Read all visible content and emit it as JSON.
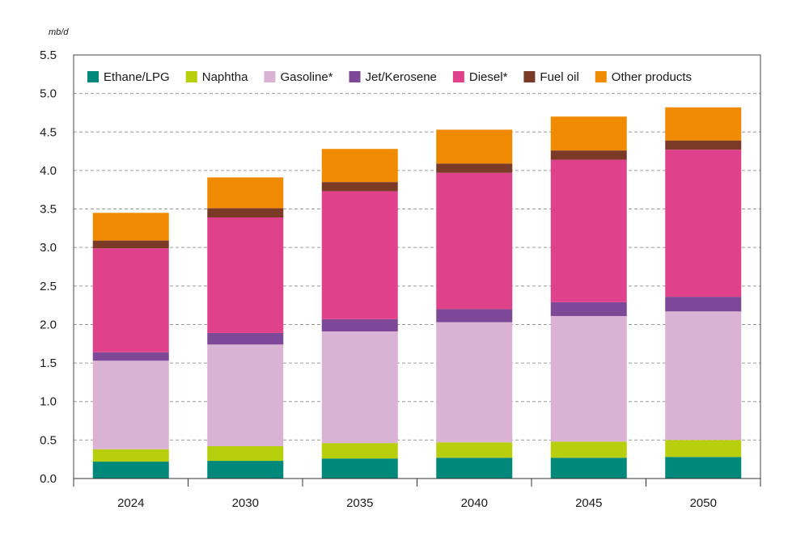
{
  "chart_data": {
    "type": "bar",
    "stacked": true,
    "yunit": "mb/d",
    "ylim": [
      0,
      5.5
    ],
    "yticks": [
      "0.0",
      "0.5",
      "1.0",
      "1.5",
      "2.0",
      "2.5",
      "3.0",
      "3.5",
      "4.0",
      "4.5",
      "5.0",
      "5.5"
    ],
    "grid": true,
    "legend_position": "top-inside",
    "categories": [
      "2024",
      "2030",
      "2035",
      "2040",
      "2045",
      "2050"
    ],
    "series": [
      {
        "name": "Ethane/LPG",
        "color": "#00897b",
        "values": [
          0.22,
          0.23,
          0.26,
          0.27,
          0.27,
          0.28
        ]
      },
      {
        "name": "Naphtha",
        "color": "#b7cf0c",
        "values": [
          0.16,
          0.19,
          0.2,
          0.2,
          0.21,
          0.22
        ]
      },
      {
        "name": "Gasoline*",
        "color": "#dab3d4",
        "values": [
          1.15,
          1.32,
          1.45,
          1.56,
          1.63,
          1.67
        ]
      },
      {
        "name": "Jet/Kerosene",
        "color": "#7d4897",
        "values": [
          0.11,
          0.15,
          0.16,
          0.17,
          0.18,
          0.19
        ]
      },
      {
        "name": "Diesel*",
        "color": "#e0418b",
        "values": [
          1.35,
          1.5,
          1.66,
          1.77,
          1.85,
          1.91
        ]
      },
      {
        "name": "Fuel oil",
        "color": "#7b3a26",
        "values": [
          0.1,
          0.12,
          0.12,
          0.12,
          0.12,
          0.12
        ]
      },
      {
        "name": "Other products",
        "color": "#f08a00",
        "values": [
          0.36,
          0.4,
          0.43,
          0.44,
          0.44,
          0.43
        ]
      }
    ]
  }
}
